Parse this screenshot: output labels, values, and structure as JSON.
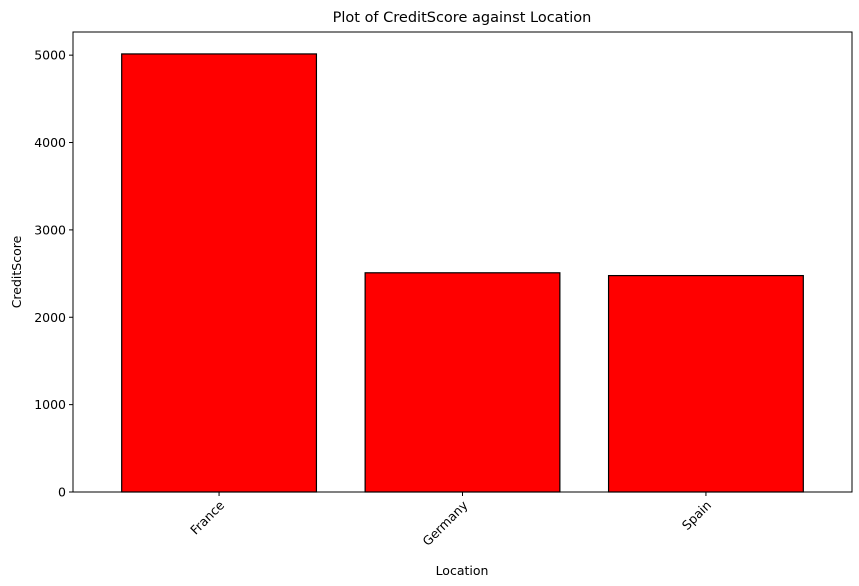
{
  "chart_data": {
    "type": "bar",
    "title": "Plot of CreditScore against Location",
    "xlabel": "Location",
    "ylabel": "CreditScore",
    "categories": [
      "France",
      "Germany",
      "Spain"
    ],
    "values": [
      5014,
      2509,
      2477
    ],
    "ylim": [
      0,
      5265
    ],
    "yticks": [
      0,
      1000,
      2000,
      3000,
      4000,
      5000
    ],
    "x_tick_rotation_deg": 45,
    "bar_color": "#ff0000",
    "bar_edge_color": "#000000",
    "grid": false,
    "legend": "none"
  }
}
